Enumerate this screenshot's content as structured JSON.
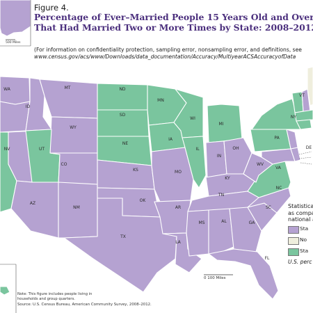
{
  "figure_label": "Figure 4.",
  "title_line1": "Percentage of Ever–Married People 15 Years Old and Over",
  "title_line2": "That Had Married Two or More Times by State: 2008–2012",
  "subtitle_line1": "(For information on confidentiality protection, sampling error, nonsampling error, and definitions, see",
  "subtitle_line2": "www.census.gov/acs/www/Downloads/data_documentation/Accuracy/MultiyearACSAccuracyofData",
  "ak_scale_label": "500 Miles",
  "main_scale_label": "0    100 Miles",
  "legend": {
    "title_line1": "Statistica",
    "title_line2": "as compa",
    "title_line3": "national a",
    "items": [
      {
        "label": "Sta",
        "color": "#b5a2d1"
      },
      {
        "label": "No",
        "color": "#efeedd"
      },
      {
        "label": "Sta",
        "color": "#7ac59e"
      }
    ],
    "note": "U.S. perc"
  },
  "note_line1": "Note: This figure includes people living in",
  "note_line2": "households and group quarters.",
  "source": "Source: U.S. Census Bureau, American Community Survey, 2008–2012.",
  "state_labels": [
    "WA",
    "ID",
    "MT",
    "WY",
    "NV",
    "UT",
    "CO",
    "AZ",
    "NM",
    "ND",
    "SD",
    "NE",
    "KS",
    "OK",
    "TX",
    "MN",
    "IA",
    "MO",
    "AR",
    "LA",
    "WI",
    "IL",
    "MI",
    "IN",
    "OH",
    "KY",
    "TN",
    "MS",
    "AL",
    "GA",
    "FL",
    "SC",
    "NC",
    "VA",
    "WV",
    "PA",
    "NY",
    "VT",
    "DE"
  ]
}
